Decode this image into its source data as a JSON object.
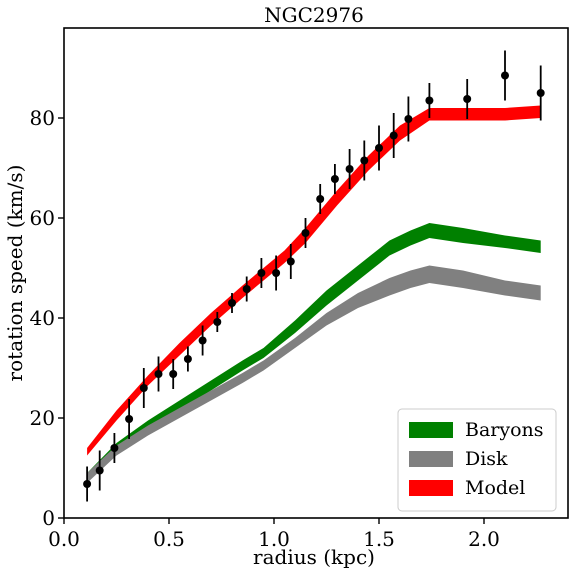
{
  "chart_data": {
    "type": "line",
    "title": "NGC2976",
    "xlabel": "radius (kpc)",
    "ylabel": "rotation speed (km/s)",
    "xlim": [
      0.0,
      2.4
    ],
    "ylim": [
      0,
      98
    ],
    "xticks": [
      "0.0",
      "0.5",
      "1.0",
      "1.5",
      "2.0"
    ],
    "xtick_values": [
      0.0,
      0.5,
      1.0,
      1.5,
      2.0
    ],
    "yticks": [
      "0",
      "20",
      "40",
      "60",
      "80"
    ],
    "ytick_values": [
      0,
      20,
      40,
      60,
      80
    ],
    "grid": false,
    "legend_position": "bottom-right",
    "series": [
      {
        "name": "Baryons",
        "kind": "band",
        "color": "#008000",
        "x": [
          0.11,
          0.25,
          0.4,
          0.55,
          0.7,
          0.85,
          0.95,
          1.1,
          1.25,
          1.4,
          1.55,
          1.65,
          1.74,
          1.9,
          2.1,
          2.27
        ],
        "lower": [
          7.0,
          13.0,
          17.5,
          21.5,
          25.5,
          29.5,
          32.0,
          37.0,
          42.5,
          47.5,
          52.5,
          54.5,
          56.0,
          55.0,
          54.0,
          53.0
        ],
        "upper": [
          9.0,
          15.0,
          19.5,
          23.5,
          27.5,
          31.5,
          34.0,
          39.5,
          45.5,
          50.5,
          55.5,
          57.5,
          59.0,
          58.0,
          56.5,
          55.5
        ]
      },
      {
        "name": "Disk",
        "kind": "band",
        "color": "#808080",
        "x": [
          0.11,
          0.25,
          0.4,
          0.55,
          0.7,
          0.85,
          0.95,
          1.1,
          1.25,
          1.4,
          1.55,
          1.65,
          1.74,
          1.9,
          2.1,
          2.27
        ],
        "lower": [
          7.0,
          12.5,
          16.5,
          20.0,
          23.5,
          27.0,
          29.5,
          34.0,
          38.5,
          42.0,
          44.5,
          46.0,
          47.0,
          46.0,
          44.5,
          43.5
        ],
        "upper": [
          9.0,
          14.5,
          18.5,
          22.0,
          25.5,
          29.0,
          31.5,
          36.0,
          41.0,
          45.0,
          48.0,
          49.5,
          50.5,
          49.5,
          47.5,
          46.5
        ]
      },
      {
        "name": "Model",
        "kind": "band",
        "color": "#ff0000",
        "x": [
          0.11,
          0.25,
          0.4,
          0.55,
          0.7,
          0.85,
          0.95,
          1.05,
          1.15,
          1.3,
          1.45,
          1.6,
          1.74,
          1.9,
          2.1,
          2.27
        ],
        "lower": [
          12.5,
          19.5,
          26.5,
          32.5,
          38.5,
          44.0,
          47.5,
          51.0,
          55.0,
          62.5,
          69.5,
          75.5,
          79.5,
          79.5,
          79.5,
          80.0
        ],
        "upper": [
          14.0,
          21.5,
          28.5,
          35.0,
          41.0,
          46.5,
          50.0,
          53.5,
          58.0,
          65.5,
          72.5,
          78.5,
          82.0,
          82.0,
          82.0,
          82.5
        ]
      },
      {
        "name": "",
        "kind": "errorbar",
        "color": "#000000",
        "x": [
          0.11,
          0.17,
          0.24,
          0.31,
          0.38,
          0.45,
          0.52,
          0.59,
          0.66,
          0.73,
          0.8,
          0.87,
          0.94,
          1.01,
          1.08,
          1.15,
          1.22,
          1.29,
          1.36,
          1.43,
          1.5,
          1.57,
          1.64,
          1.74,
          1.92,
          2.1,
          2.27
        ],
        "y": [
          6.8,
          9.5,
          14.0,
          19.8,
          26.0,
          28.8,
          28.8,
          31.8,
          35.5,
          39.2,
          43.0,
          45.8,
          49.0,
          49.0,
          51.3,
          57.0,
          63.8,
          67.8,
          69.8,
          71.5,
          74.0,
          76.5,
          79.8,
          83.5,
          83.8,
          88.5,
          85.0
        ],
        "err": [
          3.5,
          4.0,
          3.0,
          4.0,
          4.0,
          3.5,
          3.0,
          2.5,
          3.0,
          2.0,
          2.0,
          2.5,
          3.0,
          3.5,
          3.5,
          3.0,
          3.0,
          3.0,
          4.0,
          4.0,
          4.5,
          4.5,
          4.5,
          3.5,
          4.0,
          5.0,
          5.5
        ]
      }
    ]
  }
}
